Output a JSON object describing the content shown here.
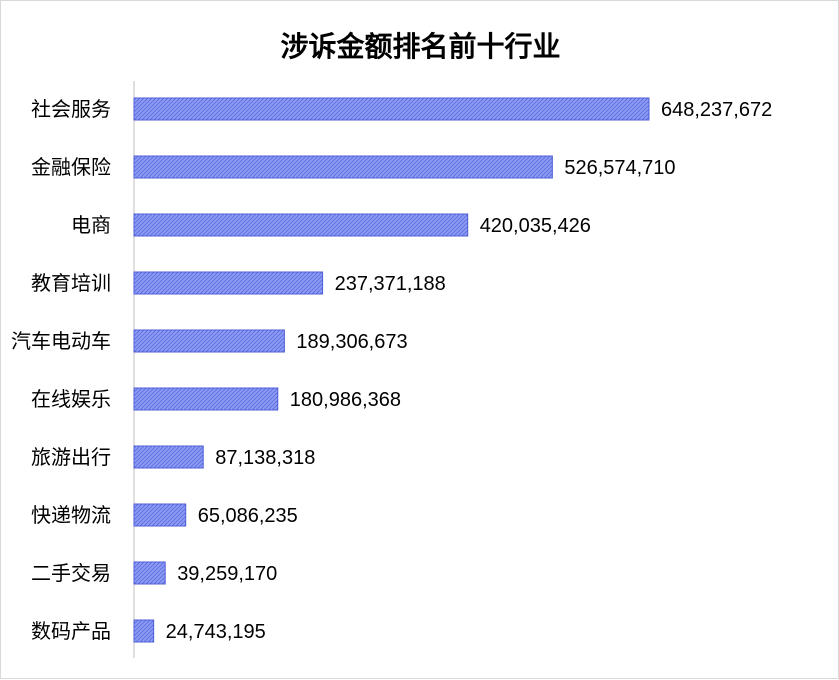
{
  "chart_data": {
    "type": "bar",
    "orientation": "horizontal",
    "title": "涉诉金额排名前十行业",
    "categories": [
      "社会服务",
      "金融保险",
      "电商",
      "教育培训",
      "汽车电动车",
      "在线娱乐",
      "旅游出行",
      "快递物流",
      "二手交易",
      "数码产品"
    ],
    "values": [
      648237672,
      526574710,
      420035426,
      237371188,
      189306673,
      180986368,
      87138318,
      65086235,
      39259170,
      24743195
    ],
    "value_labels": [
      "648,237,672",
      "526,574,710",
      "420,035,426",
      "237,371,188",
      "189,306,673",
      "180,986,368",
      "87,138,318",
      "65,086,235",
      "39,259,170",
      "24,743,195"
    ],
    "xlim": [
      0,
      650000000
    ],
    "xlabel": "",
    "ylabel": "",
    "grid": false,
    "legend": "none",
    "bar_fill": "#8f9cf3",
    "bar_hatch": "#5b6be0",
    "bar_stroke": "#4f5fd6",
    "axis_color": "#bfbfbf"
  }
}
